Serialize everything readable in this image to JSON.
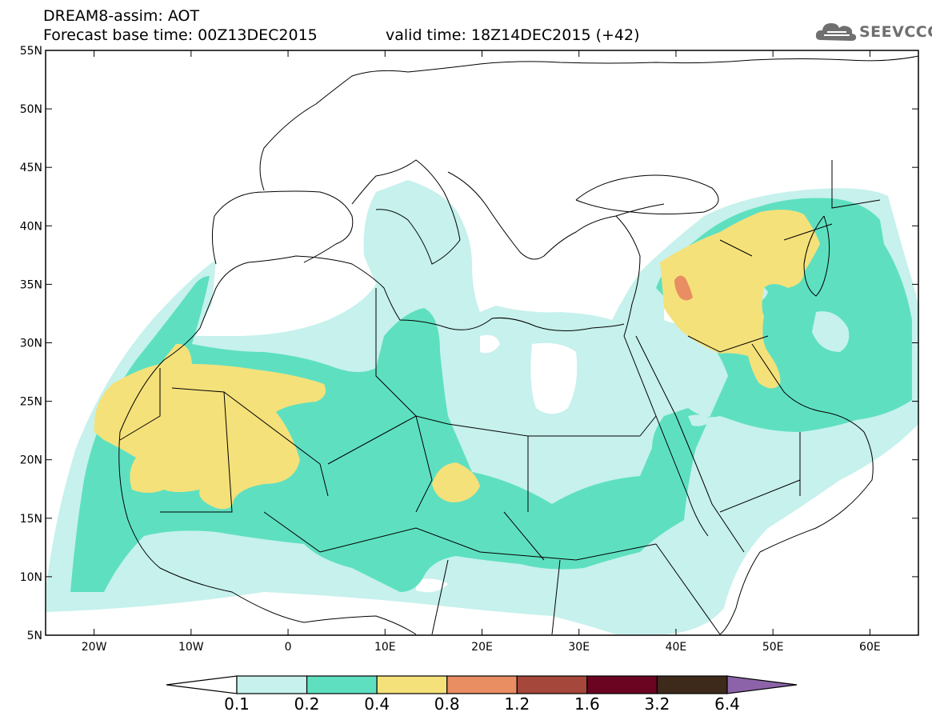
{
  "header": {
    "title_line1": "DREAM8-assim: AOT",
    "title_line2": "Forecast base time: 00Z13DEC2015",
    "valid_time": "valid time: 18Z14DEC2015 (+42)"
  },
  "logo": {
    "text": "SEEVCCC",
    "icon": "cloud-icon"
  },
  "map": {
    "lon_labels": [
      "20W",
      "10W",
      "0",
      "10E",
      "20E",
      "30E",
      "40E",
      "50E",
      "60E"
    ],
    "lat_labels": [
      "55N",
      "50N",
      "45N",
      "40N",
      "35N",
      "30N",
      "25N",
      "20N",
      "15N",
      "10N",
      "5N"
    ],
    "lon_range": [
      -25,
      65
    ],
    "lat_range": [
      5,
      55
    ]
  },
  "colorbar": {
    "thresholds": [
      "0.1",
      "0.2",
      "0.4",
      "0.8",
      "1.2",
      "1.6",
      "3.2",
      "6.4"
    ],
    "colors": [
      "#ffffff",
      "#c6f1ec",
      "#5ee0c0",
      "#f5e17a",
      "#e98d63",
      "#a5473a",
      "#6b0421",
      "#3e2a1b",
      "#8c63a8"
    ]
  }
}
